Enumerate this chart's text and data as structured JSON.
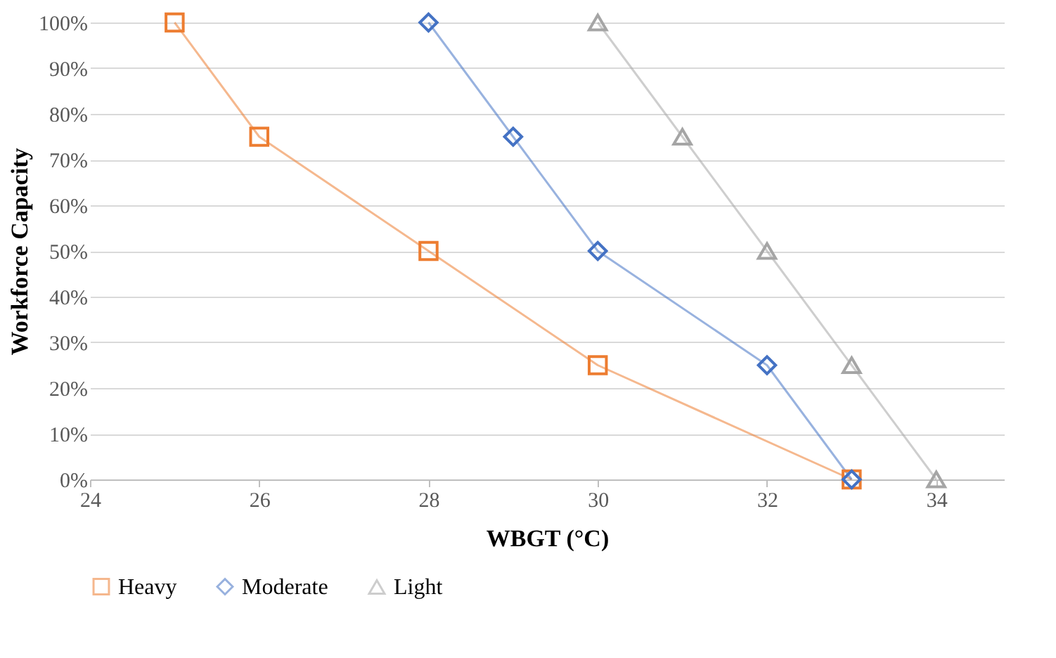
{
  "chart_data": {
    "type": "line",
    "xlabel": "WBGT (°C)",
    "ylabel": "Workforce Capacity",
    "xlim": [
      24,
      34.8
    ],
    "xticks": [
      24,
      26,
      28,
      30,
      32,
      34
    ],
    "ylim": [
      0,
      100
    ],
    "yticks": [
      {
        "value": 0,
        "label": "0%"
      },
      {
        "value": 10,
        "label": "10%"
      },
      {
        "value": 20,
        "label": "20%"
      },
      {
        "value": 30,
        "label": "30%"
      },
      {
        "value": 40,
        "label": "40%"
      },
      {
        "value": 50,
        "label": "50%"
      },
      {
        "value": 60,
        "label": "60%"
      },
      {
        "value": 70,
        "label": "70%"
      },
      {
        "value": 80,
        "label": "80%"
      },
      {
        "value": 90,
        "label": "90%"
      },
      {
        "value": 100,
        "label": "100%"
      }
    ],
    "grid": "y",
    "legend": "bottom",
    "line_style": "solid",
    "series": [
      {
        "name": "Heavy",
        "color": "#ed7d31",
        "marker": "square",
        "x": [
          25,
          26,
          28,
          30,
          33
        ],
        "values": [
          100,
          75,
          50,
          25,
          0
        ]
      },
      {
        "name": "Moderate",
        "color": "#4472c4",
        "marker": "diamond",
        "x": [
          28,
          29,
          30,
          32,
          33
        ],
        "values": [
          100,
          75,
          50,
          25,
          0
        ]
      },
      {
        "name": "Light",
        "color": "#a5a5a5",
        "marker": "triangle",
        "x": [
          30,
          31,
          32,
          33,
          34
        ],
        "values": [
          100,
          75,
          50,
          25,
          0
        ]
      }
    ]
  }
}
